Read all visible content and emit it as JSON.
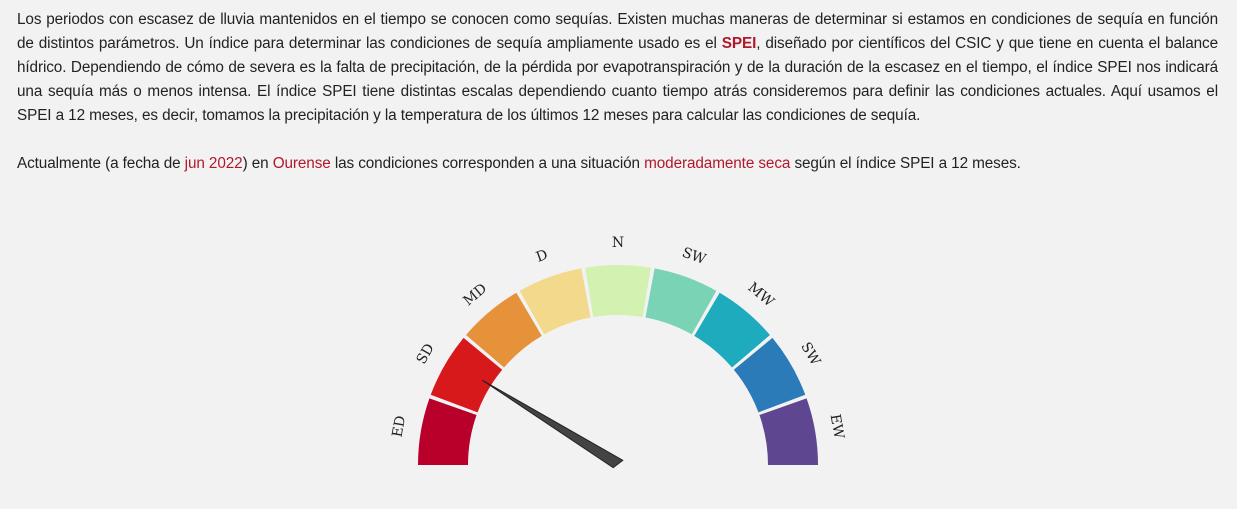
{
  "intro": {
    "p1": "Los periodos con escasez de lluvia mantenidos en el tiempo se conocen como sequías. Existen muchas maneras de determinar si estamos en condiciones de sequía en función de distintos parámetros. Un índice para determinar las condiciones de sequía ampliamente usado es el ",
    "spei_link": "SPEI",
    "p2": ", diseñado por científicos del CSIC y que tiene en cuenta el balance hídrico. Dependiendo de cómo de severa es la falta de precipitación, de la pérdida por evapotranspiración y de la duración de la escasez en el tiempo, el índice SPEI nos indicará una sequía más o menos intensa. El índice SPEI tiene distintas escalas dependiendo cuanto tiempo atrás consideremos para definir las condiciones actuales. Aquí usamos el SPEI a 12 meses, es decir, tomamos la precipitación y la temperatura de los últimos 12 meses para calcular las condiciones de sequía."
  },
  "current": {
    "prefix": "Actualmente (a fecha de ",
    "date": "jun 2022",
    "mid1": ") en ",
    "place": "Ourense",
    "mid2": " las condiciones corresponden a una situación ",
    "condition": "moderadamente seca",
    "suffix": " según el índice SPEI a 12 meses."
  },
  "colors": {
    "highlight": "#b2182b",
    "needle": "#444444",
    "background": "#f2f2f2"
  },
  "gauge": {
    "active_index": 2,
    "segments": [
      {
        "label": "ED",
        "color": "#b8002a"
      },
      {
        "label": "SD",
        "color": "#d7191c"
      },
      {
        "label": "MD",
        "color": "#e6923a"
      },
      {
        "label": "D",
        "color": "#f3d98b"
      },
      {
        "label": "N",
        "color": "#d3f1b0"
      },
      {
        "label": "SW",
        "color": "#7ad3b4"
      },
      {
        "label": "MW",
        "color": "#1eabbd"
      },
      {
        "label": "SW",
        "color": "#2b7bb9"
      },
      {
        "label": "EW",
        "color": "#5e4690"
      }
    ]
  }
}
